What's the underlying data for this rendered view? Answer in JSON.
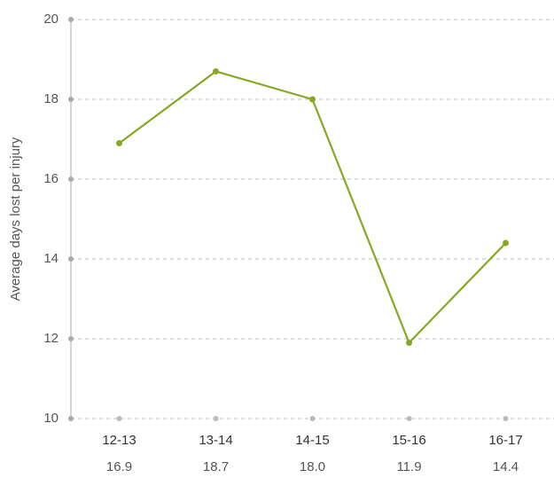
{
  "chart_data": {
    "type": "line",
    "y_label": "Average days lost per injury",
    "categories": [
      "12-13",
      "13-14",
      "14-15",
      "15-16",
      "16-17"
    ],
    "values": [
      16.9,
      18.7,
      18.0,
      11.9,
      14.4
    ],
    "value_labels": [
      "16.9",
      "18.7",
      "18.0",
      "11.9",
      "14.4"
    ],
    "color": "#86a824",
    "ylim": [
      10,
      20
    ],
    "yticks": [
      10,
      12,
      14,
      16,
      18,
      20
    ],
    "grid": true
  }
}
